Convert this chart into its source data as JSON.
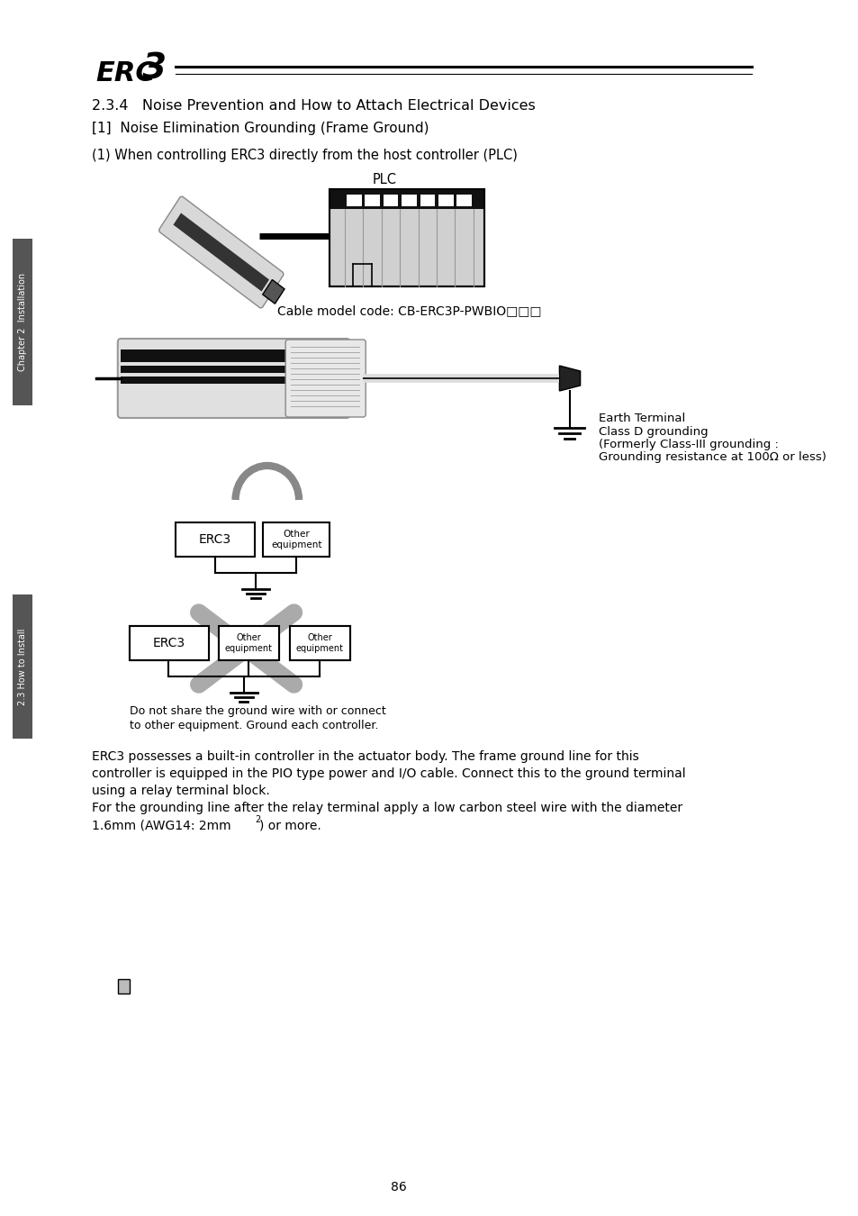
{
  "bg_color": "#ffffff",
  "title_section": "2.3.4   Noise Prevention and How to Attach Electrical Devices",
  "subtitle_section": "[1]  Noise Elimination Grounding (Frame Ground)",
  "subheading": "(1) When controlling ERC3 directly from the host controller (PLC)",
  "plc_label": "PLC",
  "cable_label": "Cable model code: CB-ERC3P-PWBIO□□□",
  "earth_label_line1": "Earth Terminal",
  "earth_label_line2": "Class D grounding",
  "earth_label_line3": "(Formerly Class-III grounding :",
  "earth_label_line4": "Grounding resistance at 100Ω or less)",
  "erc3_label": "ERC3",
  "erc3_label2": "ERC3",
  "donot_label_line1": "Do not share the ground wire with or connect",
  "donot_label_line2": "to other equipment. Ground each controller.",
  "body_text_line1": "ERC3 possesses a built-in controller in the actuator body. The frame ground line for this",
  "body_text_line2": "controller is equipped in the PIO type power and I/O cable. Connect this to the ground terminal",
  "body_text_line3": "using a relay terminal block.",
  "body_text_line4": "For the grounding line after the relay terminal apply a low carbon steel wire with the diameter",
  "body_text_line5": "1.6mm (AWG14: 2mm",
  "body_text_superscript": "2",
  "body_text_line5b": ") or more.",
  "page_number": "86",
  "left_sidebar_top": "Chapter 2  Installation",
  "left_sidebar_bottom": "2.3 How to Install"
}
